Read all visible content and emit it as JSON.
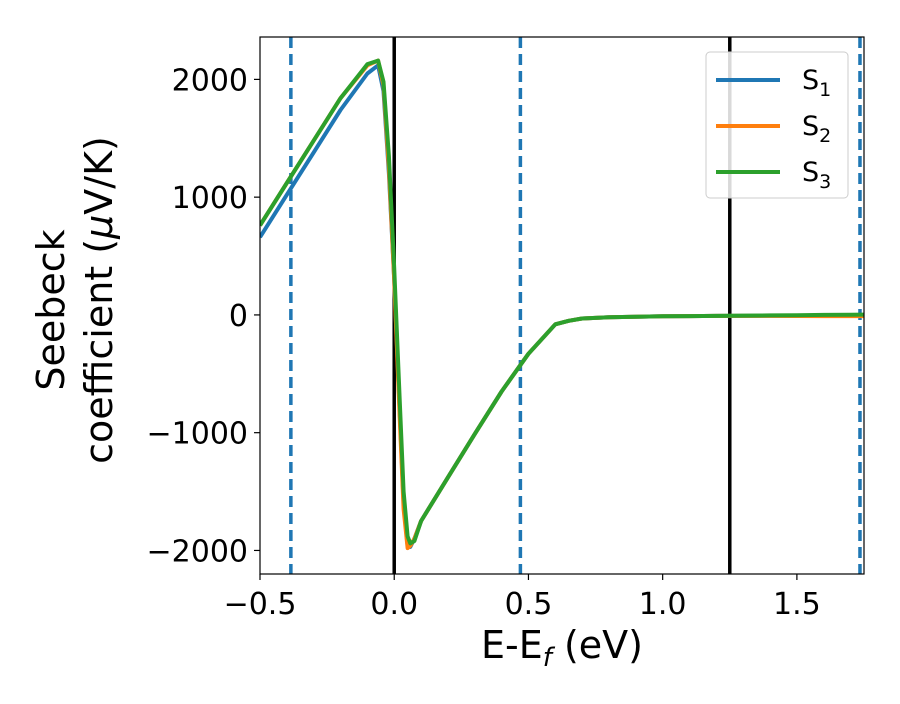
{
  "chart_data": {
    "type": "line",
    "xlabel_base": "E-E",
    "xlabel_sub": "f",
    "xlabel_unit": " (eV)",
    "ylabel_line1": "Seebeck",
    "ylabel_line2_prefix": "coefficient  (",
    "ylabel_mu": "μ",
    "ylabel_line2_suffix": "V/K)",
    "xlim": [
      -0.5,
      1.75
    ],
    "ylim": [
      -2200,
      2360
    ],
    "xticks": [
      {
        "value": -0.5,
        "label": "−0.5"
      },
      {
        "value": 0.0,
        "label": "0.0"
      },
      {
        "value": 0.5,
        "label": "0.5"
      },
      {
        "value": 1.0,
        "label": "1.0"
      },
      {
        "value": 1.5,
        "label": "1.5"
      }
    ],
    "yticks": [
      {
        "value": 2000,
        "label": "2000"
      },
      {
        "value": 1000,
        "label": "1000"
      },
      {
        "value": 0,
        "label": "0"
      },
      {
        "value": -1000,
        "label": "−1000"
      },
      {
        "value": -2000,
        "label": "−2000"
      }
    ],
    "vlines_solid": [
      0.0,
      1.25
    ],
    "vlines_dashed": [
      -0.385,
      0.47,
      1.735
    ],
    "legend_position": "top-right",
    "series": [
      {
        "name": "S1",
        "label_base": "S",
        "label_sub": "1",
        "color": "#1f77b4",
        "x": [
          -0.5,
          -0.4,
          -0.3,
          -0.2,
          -0.1,
          -0.06,
          -0.04,
          -0.02,
          0.0,
          0.02,
          0.035,
          0.05,
          0.06,
          0.075,
          0.1,
          0.2,
          0.3,
          0.4,
          0.5,
          0.6,
          0.65,
          0.7,
          0.8,
          0.9,
          1.0,
          1.1,
          1.2,
          1.3,
          1.4,
          1.5,
          1.6,
          1.7,
          1.75
        ],
        "y": [
          660,
          1020,
          1380,
          1740,
          2050,
          2120,
          1900,
          1200,
          300,
          -800,
          -1600,
          -1960,
          -1970,
          -1900,
          -1750,
          -1380,
          -1010,
          -650,
          -330,
          -80,
          -50,
          -30,
          -20,
          -15,
          -12,
          -10,
          -8,
          -8,
          -7,
          -7,
          -7,
          -7,
          -7
        ]
      },
      {
        "name": "S2",
        "label_base": "S",
        "label_sub": "2",
        "color": "#ff7f0e",
        "x": [
          -0.5,
          -0.4,
          -0.3,
          -0.2,
          -0.1,
          -0.06,
          -0.04,
          -0.02,
          0.0,
          0.02,
          0.035,
          0.05,
          0.06,
          0.075,
          0.1,
          0.2,
          0.3,
          0.4,
          0.5,
          0.6,
          0.65,
          0.7,
          0.8,
          0.9,
          1.0,
          1.1,
          1.2,
          1.3,
          1.4,
          1.5,
          1.6,
          1.7,
          1.75
        ],
        "y": [
          760,
          1120,
          1480,
          1840,
          2120,
          2160,
          1950,
          1250,
          300,
          -850,
          -1650,
          -1980,
          -1960,
          -1900,
          -1750,
          -1380,
          -1010,
          -650,
          -330,
          -80,
          -50,
          -30,
          -20,
          -15,
          -12,
          -10,
          -8,
          -8,
          -8,
          -9,
          -10,
          -10,
          -10
        ]
      },
      {
        "name": "S3",
        "label_base": "S",
        "label_sub": "3",
        "color": "#2ca02c",
        "x": [
          -0.5,
          -0.4,
          -0.3,
          -0.2,
          -0.1,
          -0.06,
          -0.04,
          -0.02,
          0.0,
          0.02,
          0.035,
          0.05,
          0.06,
          0.075,
          0.1,
          0.2,
          0.3,
          0.4,
          0.5,
          0.6,
          0.65,
          0.7,
          0.8,
          0.9,
          1.0,
          1.1,
          1.2,
          1.3,
          1.4,
          1.5,
          1.6,
          1.7,
          1.75
        ],
        "y": [
          760,
          1120,
          1480,
          1840,
          2130,
          2160,
          1980,
          1350,
          400,
          -700,
          -1500,
          -1880,
          -1940,
          -1920,
          -1750,
          -1380,
          -1010,
          -650,
          -330,
          -80,
          -50,
          -30,
          -20,
          -15,
          -12,
          -10,
          -8,
          -6,
          -4,
          -2,
          0,
          2,
          3
        ]
      }
    ]
  }
}
